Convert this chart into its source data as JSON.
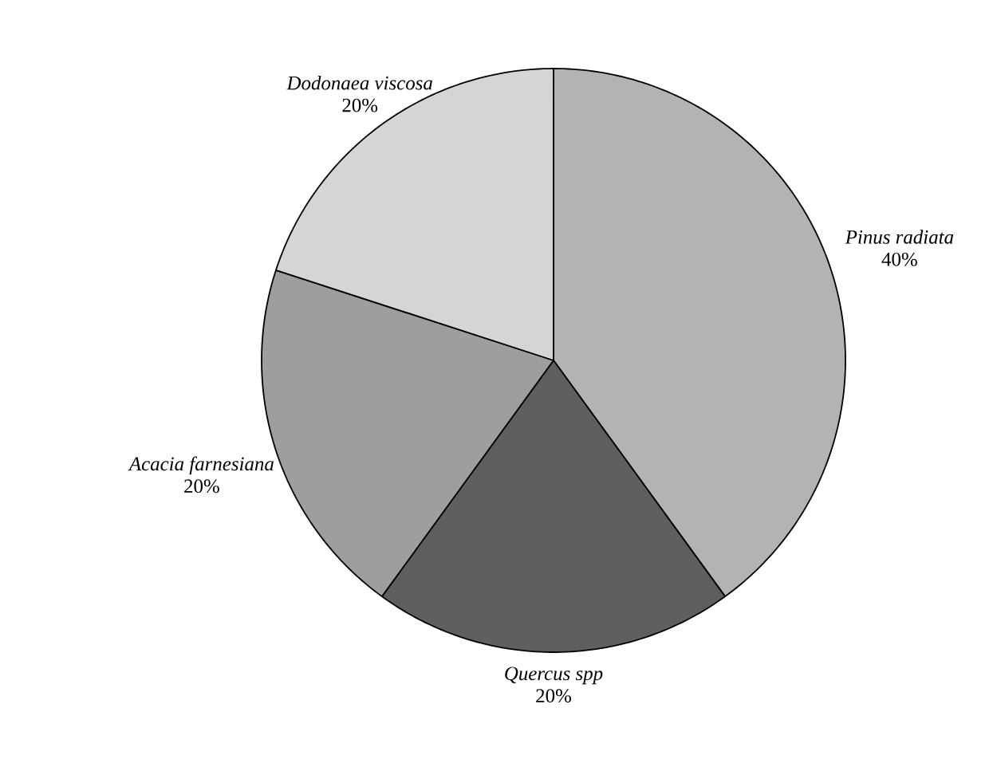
{
  "chart_data": {
    "type": "pie",
    "categories": [
      "Pinus radiata",
      "Quercus spp",
      "Acacia farnesiana",
      "Dodonaea viscosa"
    ],
    "values": [
      40,
      20,
      20,
      20
    ],
    "colors": [
      "#b3b3b3",
      "#5e5f61",
      "#9e9ea0",
      "#d4d5d7"
    ],
    "value_labels": [
      "40%",
      "20%",
      "20%",
      "20%"
    ]
  }
}
